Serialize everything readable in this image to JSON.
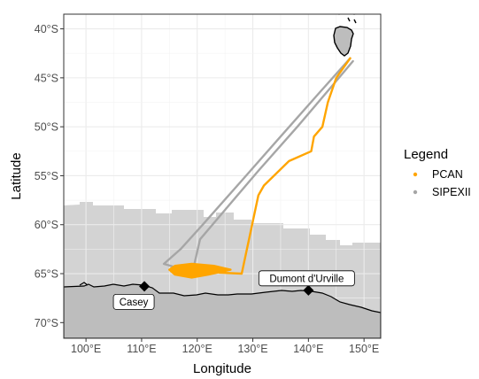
{
  "chart_data": {
    "type": "map",
    "xlabel": "Longitude",
    "ylabel": "Latitude",
    "xlim": [
      96,
      153
    ],
    "ylim": [
      -71.6,
      -38.5
    ],
    "x_ticks": [
      {
        "value": 100,
        "label": "100°E"
      },
      {
        "value": 110,
        "label": "110°E"
      },
      {
        "value": 120,
        "label": "120°E"
      },
      {
        "value": 130,
        "label": "130°E"
      },
      {
        "value": 140,
        "label": "140°E"
      },
      {
        "value": 150,
        "label": "150°E"
      }
    ],
    "y_ticks": [
      {
        "value": -40,
        "label": "40°S"
      },
      {
        "value": -45,
        "label": "45°S"
      },
      {
        "value": -50,
        "label": "50°S"
      },
      {
        "value": -55,
        "label": "55°S"
      },
      {
        "value": -60,
        "label": "60°S"
      },
      {
        "value": -65,
        "label": "65°S"
      },
      {
        "value": -70,
        "label": "70°S"
      }
    ],
    "grid": true,
    "legend": {
      "title": "Legend",
      "position": "right",
      "entries": [
        {
          "label": "PCAN",
          "color": "#FFA500"
        },
        {
          "label": "SIPEXII",
          "color": "#A6A6A6"
        }
      ]
    },
    "stations": [
      {
        "name": "Casey",
        "lon": 110.5,
        "lat": -66.3
      },
      {
        "name": "Dumont d'Urville",
        "lon": 140.0,
        "lat": -66.7
      }
    ],
    "series": [
      {
        "name": "SIPEXII",
        "color": "#A6A6A6",
        "path_out": [
          [
            147.5,
            -43.0
          ],
          [
            142.0,
            -46.5
          ],
          [
            135.0,
            -51.0
          ],
          [
            128.0,
            -55.5
          ],
          [
            121.0,
            -60.0
          ],
          [
            117.0,
            -62.5
          ],
          [
            114.0,
            -64.0
          ],
          [
            117.0,
            -64.5
          ]
        ],
        "path_back": [
          [
            119.0,
            -65.0
          ],
          [
            119.5,
            -64.0
          ],
          [
            120.5,
            -61.5
          ],
          [
            125.0,
            -58.5
          ],
          [
            131.0,
            -54.5
          ],
          [
            138.0,
            -50.0
          ],
          [
            144.0,
            -46.0
          ],
          [
            148.0,
            -43.3
          ]
        ]
      },
      {
        "name": "PCAN",
        "color": "#FFA500",
        "path_out": [
          [
            147.5,
            -43.0
          ],
          [
            145.0,
            -45.0
          ],
          [
            143.5,
            -47.5
          ],
          [
            142.5,
            -50.0
          ],
          [
            141.0,
            -51.0
          ],
          [
            140.5,
            -52.5
          ],
          [
            136.5,
            -53.5
          ],
          [
            132.0,
            -56.0
          ],
          [
            131.0,
            -57.0
          ],
          [
            128.0,
            -65.0
          ],
          [
            124.0,
            -64.9
          ]
        ],
        "patch_area": [
          [
            116.0,
            -64.2
          ],
          [
            119.0,
            -64.0
          ],
          [
            123.0,
            -64.2
          ],
          [
            126.0,
            -64.6
          ],
          [
            122.0,
            -65.1
          ],
          [
            119.0,
            -65.4
          ],
          [
            116.0,
            -65.1
          ],
          [
            115.0,
            -64.6
          ]
        ]
      }
    ]
  }
}
